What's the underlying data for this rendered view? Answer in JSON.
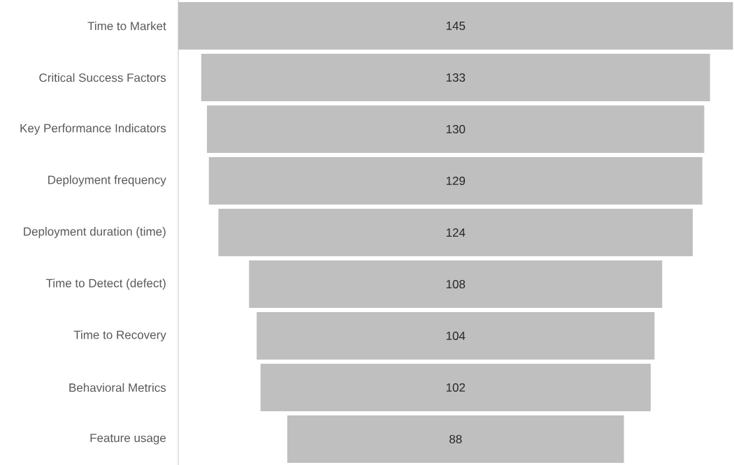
{
  "chart_data": {
    "type": "other",
    "categories": [
      "Time to Market",
      "Critical Success Factors",
      "Key Performance Indicators",
      "Deployment frequency",
      "Deployment duration (time)",
      "Time to Detect (defect)",
      "Time to Recovery",
      "Behavioral Metrics",
      "Feature usage"
    ],
    "values": [
      145,
      133,
      130,
      129,
      124,
      108,
      104,
      102,
      88
    ],
    "color": "#bfbfbf",
    "data_labels": true
  }
}
